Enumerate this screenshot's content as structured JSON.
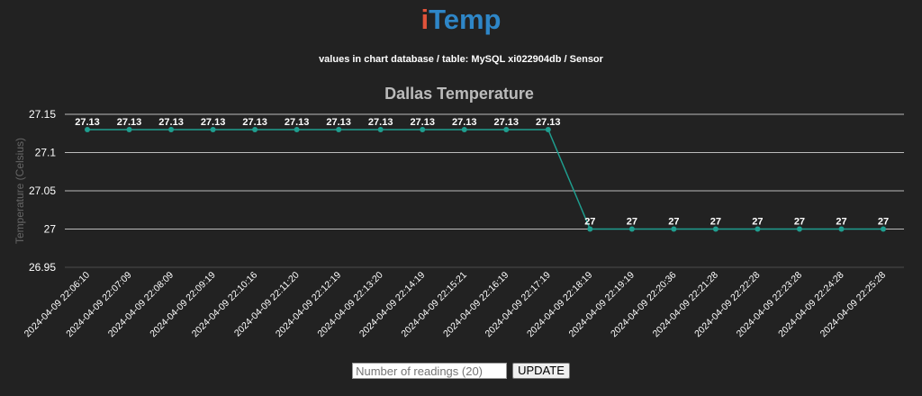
{
  "brand": {
    "prefix": "i",
    "rest": "Temp"
  },
  "subtitle": "values in chart database / table: MySQL xi022904db / Sensor",
  "controls": {
    "readings_placeholder": "Number of readings (20)",
    "update_label": "UPDATE"
  },
  "colors": {
    "line": "#1f9e8f",
    "grid": "#cccccc",
    "title": "#bbbbbb",
    "axis_label": "#666666"
  },
  "chart_data": {
    "type": "line",
    "title": "Dallas Temperature",
    "ylabel": "Temperature (Celsius)",
    "xlabel": "",
    "ylim": [
      26.95,
      27.15
    ],
    "yticks": [
      27.15,
      27.1,
      27.05,
      27,
      26.95
    ],
    "grid": true,
    "x": [
      "2024-04-09 22:06:10",
      "2024-04-09 22:07:09",
      "2024-04-09 22:08:09",
      "2024-04-09 22:09:19",
      "2024-04-09 22:10:16",
      "2024-04-09 22:11:20",
      "2024-04-09 22:12:19",
      "2024-04-09 22:13:20",
      "2024-04-09 22:14:19",
      "2024-04-09 22:15:21",
      "2024-04-09 22:16:19",
      "2024-04-09 22:17:19",
      "2024-04-09 22:18:19",
      "2024-04-09 22:19:19",
      "2024-04-09 22:20:36",
      "2024-04-09 22:21:28",
      "2024-04-09 22:22:28",
      "2024-04-09 22:23:28",
      "2024-04-09 22:24:28",
      "2024-04-09 22:25:28"
    ],
    "series": [
      {
        "values": [
          27.13,
          27.13,
          27.13,
          27.13,
          27.13,
          27.13,
          27.13,
          27.13,
          27.13,
          27.13,
          27.13,
          27.13,
          27,
          27,
          27,
          27,
          27,
          27,
          27,
          27
        ]
      }
    ]
  }
}
